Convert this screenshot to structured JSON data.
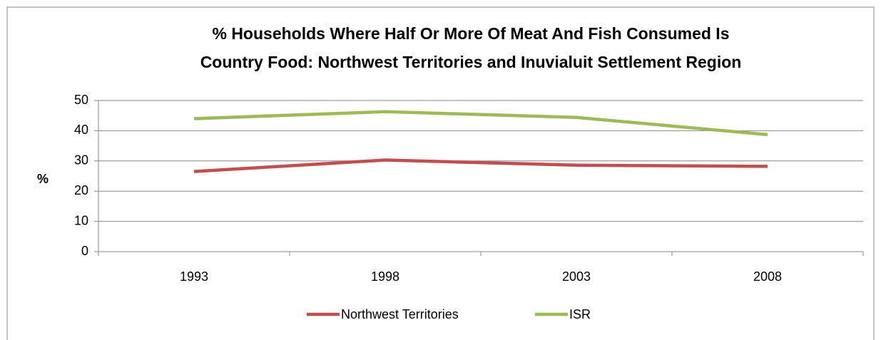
{
  "chart_data": {
    "type": "line",
    "title": [
      "% Households Where Half Or More Of Meat And Fish Consumed Is",
      "Country Food: Northwest Territories and Inuvialuit Settlement Region"
    ],
    "y_label": "%",
    "categories": [
      "1993",
      "1998",
      "2003",
      "2008"
    ],
    "series": [
      {
        "name": "Northwest Territories",
        "color": "#c0504d",
        "values": [
          26.5,
          30.3,
          28.6,
          28.2
        ]
      },
      {
        "name": "ISR",
        "color": "#9bbb59",
        "values": [
          44,
          46.3,
          44.4,
          38.7
        ]
      }
    ],
    "ylim": [
      0,
      50
    ],
    "yticks": [
      0,
      10,
      20,
      30,
      40,
      50
    ],
    "grid": true,
    "legend": "bottom"
  }
}
